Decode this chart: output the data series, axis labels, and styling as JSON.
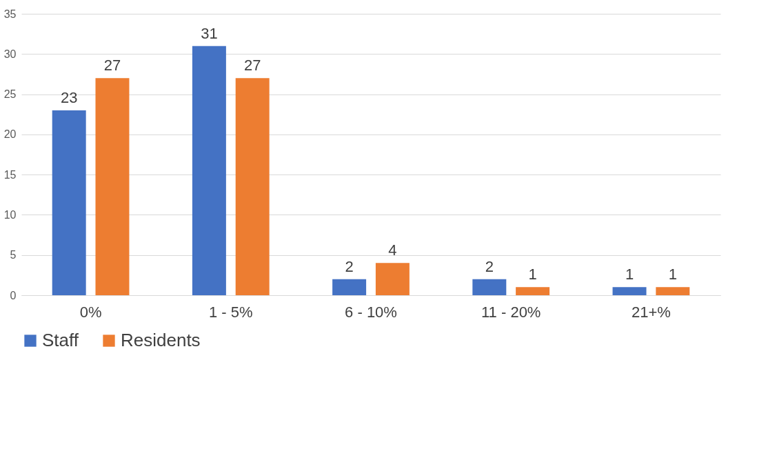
{
  "chart_data": {
    "type": "bar",
    "categories": [
      "0%",
      "1 - 5%",
      "6 - 10%",
      "11 - 20%",
      "21+%"
    ],
    "series": [
      {
        "name": "Staff",
        "color": "#4472c4",
        "values": [
          23,
          31,
          2,
          2,
          1
        ]
      },
      {
        "name": "Residents",
        "color": "#ed7d31",
        "values": [
          27,
          27,
          4,
          1,
          1
        ]
      }
    ],
    "ylim": [
      0,
      35
    ],
    "yticks": [
      0,
      5,
      10,
      15,
      20,
      25,
      30,
      35
    ],
    "grid": "y",
    "legend": "bottom",
    "data_labels": true
  }
}
